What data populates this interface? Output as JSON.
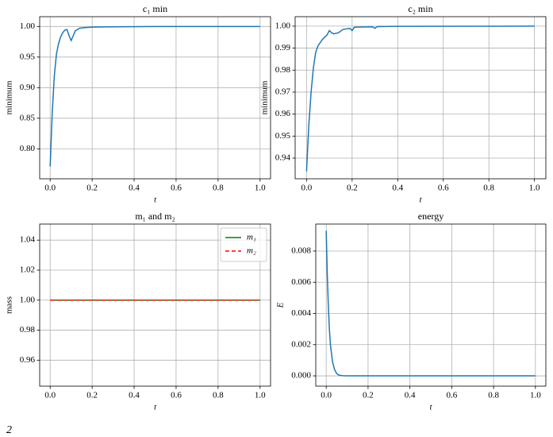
{
  "chart_data": [
    {
      "type": "line",
      "title": "c₁ min",
      "xlabel": "t",
      "ylabel": "minimum",
      "x": [
        0,
        0.01,
        0.02,
        0.03,
        0.04,
        0.05,
        0.06,
        0.07,
        0.08,
        0.09,
        0.1,
        0.11,
        0.12,
        0.14,
        0.16,
        0.2,
        0.3,
        0.5,
        1.0
      ],
      "series": [
        {
          "color": "#1f77b4",
          "values": [
            0.771,
            0.86,
            0.92,
            0.955,
            0.972,
            0.983,
            0.99,
            0.994,
            0.995,
            0.985,
            0.977,
            0.985,
            0.993,
            0.997,
            0.998,
            0.999,
            0.9995,
            1.0,
            1.0
          ]
        }
      ],
      "xlim": [
        -0.05,
        1.05
      ],
      "ylim": [
        0.751,
        1.016
      ],
      "xticks": [
        {
          "value": 0,
          "label": "0.0"
        },
        0.2,
        0.4,
        0.6,
        0.8,
        {
          "value": 1,
          "label": "1.0"
        }
      ],
      "yticks": [
        {
          "value": 0.8,
          "label": "0.80"
        },
        0.85,
        {
          "value": 0.9,
          "label": "0.90"
        },
        0.95,
        {
          "value": 1,
          "label": "1.00"
        }
      ],
      "grid": true
    },
    {
      "type": "line",
      "title": "c₂ min",
      "xlabel": "t",
      "ylabel": "minimum",
      "x": [
        0,
        0.01,
        0.02,
        0.03,
        0.04,
        0.05,
        0.07,
        0.09,
        0.1,
        0.11,
        0.12,
        0.14,
        0.16,
        0.19,
        0.2,
        0.21,
        0.25,
        0.29,
        0.3,
        0.31,
        0.4,
        1.0
      ],
      "series": [
        {
          "color": "#1f77b4",
          "values": [
            0.934,
            0.955,
            0.97,
            0.981,
            0.988,
            0.991,
            0.994,
            0.996,
            0.998,
            0.997,
            0.9965,
            0.997,
            0.9985,
            0.999,
            0.998,
            0.9995,
            0.9996,
            0.9997,
            0.999,
            0.9998,
            0.9999,
            1.0
          ]
        }
      ],
      "xlim": [
        -0.05,
        1.05
      ],
      "ylim": [
        0.9306,
        1.0043
      ],
      "xticks": [
        {
          "value": 0,
          "label": "0.0"
        },
        0.2,
        0.4,
        0.6,
        0.8,
        {
          "value": 1,
          "label": "1.0"
        }
      ],
      "yticks": [
        0.94,
        0.95,
        0.96,
        0.97,
        0.98,
        0.99,
        {
          "value": 1,
          "label": "1.00"
        }
      ],
      "grid": true
    },
    {
      "type": "line",
      "title": "m₁ and m₂",
      "xlabel": "t",
      "ylabel": "mass",
      "x": [
        0,
        1.0
      ],
      "series": [
        {
          "name": "m₁",
          "color": "#008000",
          "linestyle": "solid",
          "values": [
            1,
            1
          ]
        },
        {
          "name": "m₂",
          "color": "#ff0000",
          "linestyle": "dashed",
          "values": [
            1,
            1
          ]
        }
      ],
      "xlim": [
        -0.05,
        1.05
      ],
      "ylim": [
        0.9427,
        1.0507
      ],
      "xticks": [
        {
          "value": 0,
          "label": "0.0"
        },
        0.2,
        0.4,
        0.6,
        0.8,
        {
          "value": 1,
          "label": "1.0"
        }
      ],
      "yticks": [
        0.96,
        0.98,
        {
          "value": 1,
          "label": "1.00"
        },
        1.02,
        1.04
      ],
      "grid": true,
      "legend": "upper right"
    },
    {
      "type": "line",
      "title": "energy",
      "xlabel": "t",
      "ylabel": "E",
      "x": [
        0,
        0.005,
        0.01,
        0.015,
        0.02,
        0.03,
        0.04,
        0.05,
        0.06,
        0.08,
        0.1,
        1.0
      ],
      "series": [
        {
          "color": "#1f77b4",
          "values": [
            0.0093,
            0.0065,
            0.0045,
            0.003,
            0.002,
            0.0009,
            0.0004,
            0.00015,
            5e-05,
            1e-05,
            0,
            0
          ]
        }
      ],
      "xlim": [
        -0.05,
        1.05
      ],
      "ylim": [
        -0.00066,
        0.00973
      ],
      "xticks": [
        {
          "value": 0,
          "label": "0.0"
        },
        0.2,
        0.4,
        0.6,
        0.8,
        {
          "value": 1,
          "label": "1.0"
        }
      ],
      "yticks": [
        {
          "value": 0,
          "label": "0.000"
        },
        0.002,
        0.004,
        0.006,
        0.008
      ],
      "grid": true
    }
  ],
  "caption": "2"
}
